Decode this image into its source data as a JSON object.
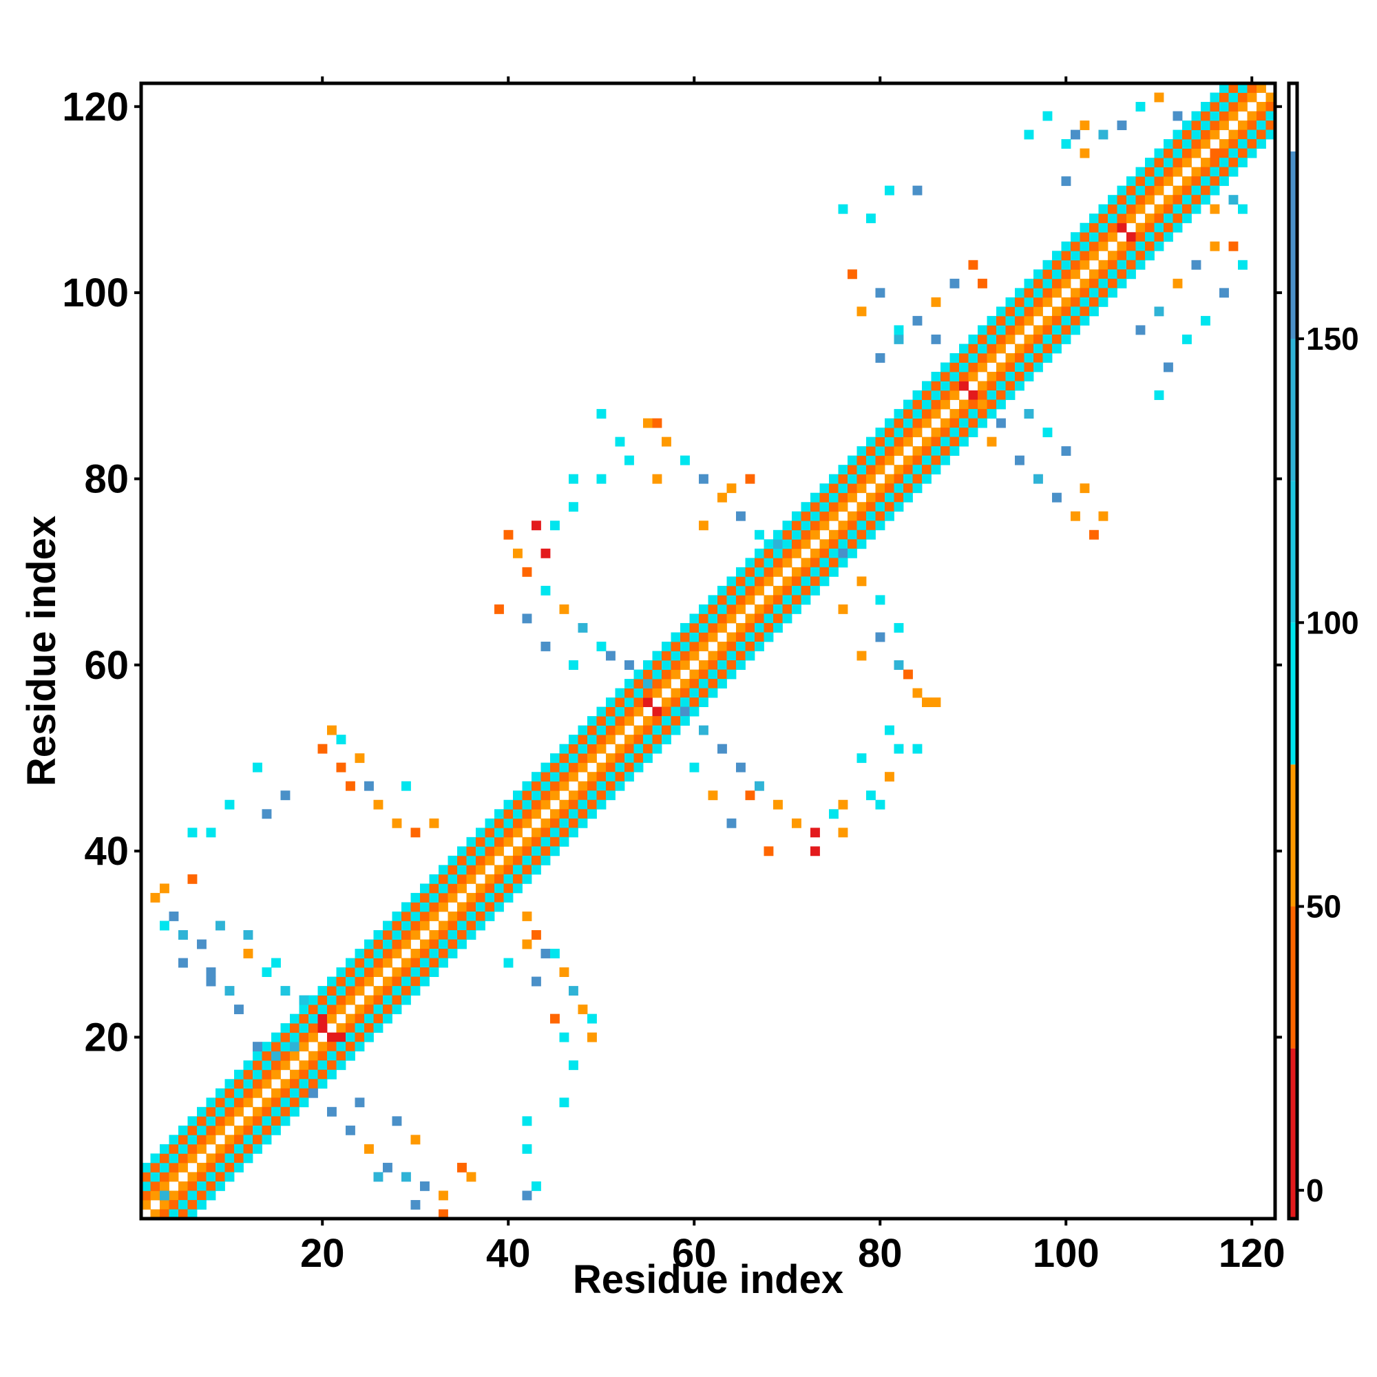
{
  "chart_data": {
    "type": "heatmap",
    "title": "",
    "xlabel": "Residue index",
    "ylabel": "Residue index",
    "n_residues": 122,
    "xlim": [
      1,
      122
    ],
    "ylim": [
      1,
      122
    ],
    "x_ticks": [
      20,
      40,
      60,
      80,
      100,
      120
    ],
    "y_ticks": [
      20,
      40,
      60,
      80,
      100,
      120
    ],
    "grid": false,
    "colorbar": {
      "position": "right",
      "ticks": [
        0,
        50,
        100,
        150
      ],
      "range": [
        -5,
        195
      ],
      "bands": [
        {
          "from": -5,
          "to": 25,
          "color": "#e31a1c"
        },
        {
          "from": 25,
          "to": 50,
          "color": "#ff6600"
        },
        {
          "from": 50,
          "to": 75,
          "color": "#ff9900"
        },
        {
          "from": 75,
          "to": 100,
          "color": "#00e5ee"
        },
        {
          "from": 100,
          "to": 125,
          "color": "#1fc6e0"
        },
        {
          "from": 125,
          "to": 150,
          "color": "#2fb3d6"
        },
        {
          "from": 150,
          "to": 183,
          "color": "#4a90c8"
        },
        {
          "from": 183,
          "to": 195,
          "color": "#ffffff"
        }
      ]
    },
    "diagonal_pattern": [
      {
        "offset": 0,
        "value": null
      },
      {
        "offset": 1,
        "value": 55
      },
      {
        "offset": 2,
        "value": 40
      },
      {
        "offset": 3,
        "value": 90
      },
      {
        "offset": 4,
        "value": 40
      },
      {
        "offset": 5,
        "value": 90
      }
    ],
    "diagonal_variations": [
      {
        "i": 3,
        "j": 3,
        "value": 140
      },
      {
        "i": 20,
        "j": 21,
        "value": 10
      },
      {
        "i": 21,
        "j": 20,
        "value": 10
      },
      {
        "i": 22,
        "j": 20,
        "value": 10
      },
      {
        "i": 20,
        "j": 22,
        "value": 10
      },
      {
        "i": 55,
        "j": 56,
        "value": 10
      },
      {
        "i": 56,
        "j": 55,
        "value": 10
      },
      {
        "i": 89,
        "j": 90,
        "value": 10
      },
      {
        "i": 90,
        "j": 89,
        "value": 10
      },
      {
        "i": 106,
        "j": 107,
        "value": 10
      },
      {
        "i": 107,
        "j": 106,
        "value": 10
      }
    ],
    "contacts": [
      {
        "i": 17,
        "j": 19,
        "value": 130
      },
      {
        "i": 15,
        "j": 18,
        "value": 140
      },
      {
        "i": 13,
        "j": 19,
        "value": 150
      },
      {
        "i": 11,
        "j": 23,
        "value": 150
      },
      {
        "i": 10,
        "j": 25,
        "value": 140
      },
      {
        "i": 8,
        "j": 27,
        "value": 150
      },
      {
        "i": 7,
        "j": 30,
        "value": 150
      },
      {
        "i": 5,
        "j": 31,
        "value": 130
      },
      {
        "i": 4,
        "j": 33,
        "value": 150
      },
      {
        "i": 2,
        "j": 35,
        "value": 60
      },
      {
        "i": 3,
        "j": 36,
        "value": 60
      },
      {
        "i": 6,
        "j": 37,
        "value": 40
      },
      {
        "i": 9,
        "j": 32,
        "value": 130
      },
      {
        "i": 12,
        "j": 29,
        "value": 60
      },
      {
        "i": 14,
        "j": 27,
        "value": 90
      },
      {
        "i": 16,
        "j": 25,
        "value": 110
      },
      {
        "i": 18,
        "j": 24,
        "value": 120
      },
      {
        "i": 20,
        "j": 25,
        "value": 90
      },
      {
        "i": 3,
        "j": 32,
        "value": 90
      },
      {
        "i": 5,
        "j": 28,
        "value": 150
      },
      {
        "i": 8,
        "j": 26,
        "value": 150
      },
      {
        "i": 12,
        "j": 31,
        "value": 130
      },
      {
        "i": 15,
        "j": 28,
        "value": 90
      },
      {
        "i": 19,
        "j": 14,
        "value": 150
      },
      {
        "i": 21,
        "j": 12,
        "value": 150
      },
      {
        "i": 23,
        "j": 10,
        "value": 150
      },
      {
        "i": 25,
        "j": 8,
        "value": 60
      },
      {
        "i": 27,
        "j": 6,
        "value": 150
      },
      {
        "i": 29,
        "j": 5,
        "value": 130
      },
      {
        "i": 31,
        "j": 4,
        "value": 150
      },
      {
        "i": 33,
        "j": 3,
        "value": 60
      },
      {
        "i": 35,
        "j": 6,
        "value": 40
      },
      {
        "i": 33,
        "j": 1,
        "value": 40
      },
      {
        "i": 30,
        "j": 2,
        "value": 150
      },
      {
        "i": 26,
        "j": 5,
        "value": 130
      },
      {
        "i": 28,
        "j": 11,
        "value": 150
      },
      {
        "i": 30,
        "j": 9,
        "value": 60
      },
      {
        "i": 24,
        "j": 13,
        "value": 150
      },
      {
        "i": 36,
        "j": 5,
        "value": 60
      },
      {
        "i": 42,
        "j": 8,
        "value": 90
      },
      {
        "i": 43,
        "j": 4,
        "value": 90
      },
      {
        "i": 46,
        "j": 13,
        "value": 90
      },
      {
        "i": 47,
        "j": 17,
        "value": 90
      },
      {
        "i": 42,
        "j": 11,
        "value": 90
      },
      {
        "i": 42,
        "j": 3,
        "value": 150
      },
      {
        "i": 13,
        "j": 49,
        "value": 90
      },
      {
        "i": 10,
        "j": 45,
        "value": 90
      },
      {
        "i": 8,
        "j": 42,
        "value": 90
      },
      {
        "i": 16,
        "j": 46,
        "value": 150
      },
      {
        "i": 21,
        "j": 53,
        "value": 60
      },
      {
        "i": 22,
        "j": 52,
        "value": 90
      },
      {
        "i": 20,
        "j": 51,
        "value": 40
      },
      {
        "i": 22,
        "j": 49,
        "value": 40
      },
      {
        "i": 24,
        "j": 50,
        "value": 60
      },
      {
        "i": 25,
        "j": 47,
        "value": 150
      },
      {
        "i": 26,
        "j": 45,
        "value": 60
      },
      {
        "i": 28,
        "j": 43,
        "value": 60
      },
      {
        "i": 30,
        "j": 42,
        "value": 40
      },
      {
        "i": 32,
        "j": 43,
        "value": 60
      },
      {
        "i": 29,
        "j": 47,
        "value": 90
      },
      {
        "i": 23,
        "j": 47,
        "value": 40
      },
      {
        "i": 6,
        "j": 42,
        "value": 90
      },
      {
        "i": 14,
        "j": 44,
        "value": 150
      },
      {
        "i": 42,
        "j": 33,
        "value": 60
      },
      {
        "i": 43,
        "j": 31,
        "value": 40
      },
      {
        "i": 44,
        "j": 29,
        "value": 150
      },
      {
        "i": 46,
        "j": 27,
        "value": 60
      },
      {
        "i": 47,
        "j": 25,
        "value": 130
      },
      {
        "i": 48,
        "j": 23,
        "value": 60
      },
      {
        "i": 49,
        "j": 22,
        "value": 90
      },
      {
        "i": 45,
        "j": 22,
        "value": 40
      },
      {
        "i": 49,
        "j": 20,
        "value": 60
      },
      {
        "i": 43,
        "j": 26,
        "value": 150
      },
      {
        "i": 45,
        "j": 29,
        "value": 90
      },
      {
        "i": 42,
        "j": 30,
        "value": 60
      },
      {
        "i": 46,
        "j": 20,
        "value": 90
      },
      {
        "i": 40,
        "j": 28,
        "value": 90
      },
      {
        "i": 55,
        "j": 58,
        "value": 130
      },
      {
        "i": 53,
        "j": 60,
        "value": 150
      },
      {
        "i": 51,
        "j": 61,
        "value": 150
      },
      {
        "i": 50,
        "j": 62,
        "value": 90
      },
      {
        "i": 48,
        "j": 64,
        "value": 130
      },
      {
        "i": 46,
        "j": 66,
        "value": 60
      },
      {
        "i": 44,
        "j": 68,
        "value": 90
      },
      {
        "i": 42,
        "j": 70,
        "value": 40
      },
      {
        "i": 41,
        "j": 72,
        "value": 60
      },
      {
        "i": 40,
        "j": 74,
        "value": 40
      },
      {
        "i": 39,
        "j": 66,
        "value": 40
      },
      {
        "i": 42,
        "j": 65,
        "value": 150
      },
      {
        "i": 44,
        "j": 62,
        "value": 150
      },
      {
        "i": 47,
        "j": 60,
        "value": 90
      },
      {
        "i": 43,
        "j": 75,
        "value": 10
      },
      {
        "i": 44,
        "j": 72,
        "value": 10
      },
      {
        "i": 45,
        "j": 75,
        "value": 90
      },
      {
        "i": 47,
        "j": 77,
        "value": 90
      },
      {
        "i": 50,
        "j": 80,
        "value": 90
      },
      {
        "i": 52,
        "j": 84,
        "value": 90
      },
      {
        "i": 47,
        "j": 80,
        "value": 90
      },
      {
        "i": 50,
        "j": 87,
        "value": 90
      },
      {
        "i": 59,
        "j": 55,
        "value": 150
      },
      {
        "i": 61,
        "j": 53,
        "value": 130
      },
      {
        "i": 63,
        "j": 51,
        "value": 150
      },
      {
        "i": 65,
        "j": 49,
        "value": 150
      },
      {
        "i": 67,
        "j": 47,
        "value": 130
      },
      {
        "i": 69,
        "j": 45,
        "value": 60
      },
      {
        "i": 71,
        "j": 43,
        "value": 60
      },
      {
        "i": 73,
        "j": 42,
        "value": 10
      },
      {
        "i": 75,
        "j": 44,
        "value": 90
      },
      {
        "i": 76,
        "j": 42,
        "value": 60
      },
      {
        "i": 66,
        "j": 46,
        "value": 40
      },
      {
        "i": 64,
        "j": 43,
        "value": 150
      },
      {
        "i": 62,
        "j": 46,
        "value": 60
      },
      {
        "i": 60,
        "j": 49,
        "value": 90
      },
      {
        "i": 68,
        "j": 40,
        "value": 40
      },
      {
        "i": 73,
        "j": 40,
        "value": 10
      },
      {
        "i": 76,
        "j": 45,
        "value": 60
      },
      {
        "i": 78,
        "j": 50,
        "value": 90
      },
      {
        "i": 79,
        "j": 46,
        "value": 90
      },
      {
        "i": 81,
        "j": 48,
        "value": 60
      },
      {
        "i": 80,
        "j": 45,
        "value": 90
      },
      {
        "i": 82,
        "j": 51,
        "value": 90
      },
      {
        "i": 57,
        "j": 84,
        "value": 60
      },
      {
        "i": 59,
        "j": 82,
        "value": 90
      },
      {
        "i": 61,
        "j": 80,
        "value": 150
      },
      {
        "i": 63,
        "j": 78,
        "value": 60
      },
      {
        "i": 65,
        "j": 76,
        "value": 150
      },
      {
        "i": 67,
        "j": 74,
        "value": 90
      },
      {
        "i": 69,
        "j": 73,
        "value": 130
      },
      {
        "i": 64,
        "j": 79,
        "value": 60
      },
      {
        "i": 66,
        "j": 80,
        "value": 40
      },
      {
        "i": 61,
        "j": 75,
        "value": 60
      },
      {
        "i": 55,
        "j": 86,
        "value": 60
      },
      {
        "i": 56,
        "j": 86,
        "value": 40
      },
      {
        "i": 53,
        "j": 82,
        "value": 90
      },
      {
        "i": 56,
        "j": 80,
        "value": 60
      },
      {
        "i": 78,
        "j": 61,
        "value": 60
      },
      {
        "i": 80,
        "j": 63,
        "value": 150
      },
      {
        "i": 82,
        "j": 60,
        "value": 130
      },
      {
        "i": 84,
        "j": 57,
        "value": 60
      },
      {
        "i": 86,
        "j": 56,
        "value": 60
      },
      {
        "i": 83,
        "j": 59,
        "value": 40
      },
      {
        "i": 82,
        "j": 64,
        "value": 90
      },
      {
        "i": 80,
        "j": 67,
        "value": 90
      },
      {
        "i": 78,
        "j": 69,
        "value": 60
      },
      {
        "i": 76,
        "j": 72,
        "value": 150
      },
      {
        "i": 76,
        "j": 66,
        "value": 60
      },
      {
        "i": 81,
        "j": 53,
        "value": 90
      },
      {
        "i": 84,
        "j": 51,
        "value": 90
      },
      {
        "i": 85,
        "j": 56,
        "value": 60
      },
      {
        "i": 80,
        "j": 93,
        "value": 150
      },
      {
        "i": 82,
        "j": 95,
        "value": 130
      },
      {
        "i": 84,
        "j": 97,
        "value": 150
      },
      {
        "i": 86,
        "j": 99,
        "value": 60
      },
      {
        "i": 88,
        "j": 101,
        "value": 150
      },
      {
        "i": 90,
        "j": 103,
        "value": 40
      },
      {
        "i": 91,
        "j": 101,
        "value": 40
      },
      {
        "i": 78,
        "j": 98,
        "value": 60
      },
      {
        "i": 80,
        "j": 100,
        "value": 150
      },
      {
        "i": 82,
        "j": 96,
        "value": 90
      },
      {
        "i": 77,
        "j": 102,
        "value": 40
      },
      {
        "i": 79,
        "j": 108,
        "value": 90
      },
      {
        "i": 81,
        "j": 111,
        "value": 90
      },
      {
        "i": 84,
        "j": 111,
        "value": 150
      },
      {
        "i": 76,
        "j": 109,
        "value": 90
      },
      {
        "i": 86,
        "j": 95,
        "value": 150
      },
      {
        "i": 95,
        "j": 82,
        "value": 150
      },
      {
        "i": 97,
        "j": 80,
        "value": 130
      },
      {
        "i": 99,
        "j": 78,
        "value": 150
      },
      {
        "i": 101,
        "j": 76,
        "value": 60
      },
      {
        "i": 103,
        "j": 74,
        "value": 40
      },
      {
        "i": 104,
        "j": 76,
        "value": 60
      },
      {
        "i": 102,
        "j": 79,
        "value": 60
      },
      {
        "i": 100,
        "j": 83,
        "value": 150
      },
      {
        "i": 98,
        "j": 85,
        "value": 90
      },
      {
        "i": 96,
        "j": 87,
        "value": 130
      },
      {
        "i": 93,
        "j": 86,
        "value": 150
      },
      {
        "i": 91,
        "j": 88,
        "value": 60
      },
      {
        "i": 92,
        "j": 84,
        "value": 60
      },
      {
        "i": 100,
        "j": 112,
        "value": 150
      },
      {
        "i": 102,
        "j": 115,
        "value": 60
      },
      {
        "i": 104,
        "j": 117,
        "value": 130
      },
      {
        "i": 106,
        "j": 118,
        "value": 150
      },
      {
        "i": 108,
        "j": 120,
        "value": 90
      },
      {
        "i": 110,
        "j": 121,
        "value": 60
      },
      {
        "i": 112,
        "j": 119,
        "value": 150
      },
      {
        "i": 114,
        "j": 117,
        "value": 90
      },
      {
        "i": 116,
        "j": 115,
        "value": 40
      },
      {
        "i": 100,
        "j": 116,
        "value": 90
      },
      {
        "i": 102,
        "j": 118,
        "value": 60
      },
      {
        "i": 96,
        "j": 117,
        "value": 90
      },
      {
        "i": 98,
        "j": 119,
        "value": 90
      },
      {
        "i": 101,
        "j": 117,
        "value": 150
      },
      {
        "i": 108,
        "j": 96,
        "value": 150
      },
      {
        "i": 110,
        "j": 98,
        "value": 130
      },
      {
        "i": 112,
        "j": 101,
        "value": 60
      },
      {
        "i": 114,
        "j": 103,
        "value": 150
      },
      {
        "i": 116,
        "j": 105,
        "value": 60
      },
      {
        "i": 118,
        "j": 105,
        "value": 40
      },
      {
        "i": 119,
        "j": 103,
        "value": 90
      },
      {
        "i": 117,
        "j": 100,
        "value": 150
      },
      {
        "i": 115,
        "j": 97,
        "value": 90
      },
      {
        "i": 113,
        "j": 95,
        "value": 90
      },
      {
        "i": 111,
        "j": 92,
        "value": 150
      },
      {
        "i": 110,
        "j": 89,
        "value": 90
      },
      {
        "i": 116,
        "j": 109,
        "value": 60
      },
      {
        "i": 118,
        "j": 110,
        "value": 130
      },
      {
        "i": 119,
        "j": 109,
        "value": 90
      }
    ]
  }
}
